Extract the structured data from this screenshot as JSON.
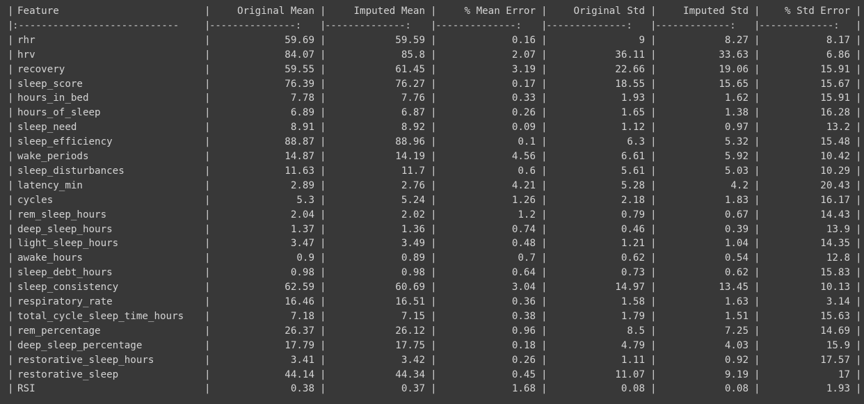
{
  "columns": [
    {
      "label": "Feature",
      "align": "left",
      "sep": ":----------------------------"
    },
    {
      "label": "Original Mean",
      "align": "right",
      "sep": "---------------:"
    },
    {
      "label": "Imputed Mean",
      "align": "right",
      "sep": "--------------:"
    },
    {
      "label": "% Mean Error",
      "align": "right",
      "sep": "--------------:"
    },
    {
      "label": "Original Std",
      "align": "right",
      "sep": "--------------:"
    },
    {
      "label": "Imputed Std",
      "align": "right",
      "sep": "-------------:"
    },
    {
      "label": "% Std Error",
      "align": "right",
      "sep": "-------------:"
    }
  ],
  "rows": [
    [
      "rhr",
      "59.69",
      "59.59",
      "0.16",
      "9",
      "8.27",
      "8.17"
    ],
    [
      "hrv",
      "84.07",
      "85.8",
      "2.07",
      "36.11",
      "33.63",
      "6.86"
    ],
    [
      "recovery",
      "59.55",
      "61.45",
      "3.19",
      "22.66",
      "19.06",
      "15.91"
    ],
    [
      "sleep_score",
      "76.39",
      "76.27",
      "0.17",
      "18.55",
      "15.65",
      "15.67"
    ],
    [
      "hours_in_bed",
      "7.78",
      "7.76",
      "0.33",
      "1.93",
      "1.62",
      "15.91"
    ],
    [
      "hours_of_sleep",
      "6.89",
      "6.87",
      "0.26",
      "1.65",
      "1.38",
      "16.28"
    ],
    [
      "sleep_need",
      "8.91",
      "8.92",
      "0.09",
      "1.12",
      "0.97",
      "13.2"
    ],
    [
      "sleep_efficiency",
      "88.87",
      "88.96",
      "0.1",
      "6.3",
      "5.32",
      "15.48"
    ],
    [
      "wake_periods",
      "14.87",
      "14.19",
      "4.56",
      "6.61",
      "5.92",
      "10.42"
    ],
    [
      "sleep_disturbances",
      "11.63",
      "11.7",
      "0.6",
      "5.61",
      "5.03",
      "10.29"
    ],
    [
      "latency_min",
      "2.89",
      "2.76",
      "4.21",
      "5.28",
      "4.2",
      "20.43"
    ],
    [
      "cycles",
      "5.3",
      "5.24",
      "1.26",
      "2.18",
      "1.83",
      "16.17"
    ],
    [
      "rem_sleep_hours",
      "2.04",
      "2.02",
      "1.2",
      "0.79",
      "0.67",
      "14.43"
    ],
    [
      "deep_sleep_hours",
      "1.37",
      "1.36",
      "0.74",
      "0.46",
      "0.39",
      "13.9"
    ],
    [
      "light_sleep_hours",
      "3.47",
      "3.49",
      "0.48",
      "1.21",
      "1.04",
      "14.35"
    ],
    [
      "awake_hours",
      "0.9",
      "0.89",
      "0.7",
      "0.62",
      "0.54",
      "12.8"
    ],
    [
      "sleep_debt_hours",
      "0.98",
      "0.98",
      "0.64",
      "0.73",
      "0.62",
      "15.83"
    ],
    [
      "sleep_consistency",
      "62.59",
      "60.69",
      "3.04",
      "14.97",
      "13.45",
      "10.13"
    ],
    [
      "respiratory_rate",
      "16.46",
      "16.51",
      "0.36",
      "1.58",
      "1.63",
      "3.14"
    ],
    [
      "total_cycle_sleep_time_hours",
      "7.18",
      "7.15",
      "0.38",
      "1.79",
      "1.51",
      "15.63"
    ],
    [
      "rem_percentage",
      "26.37",
      "26.12",
      "0.96",
      "8.5",
      "7.25",
      "14.69"
    ],
    [
      "deep_sleep_percentage",
      "17.79",
      "17.75",
      "0.18",
      "4.79",
      "4.03",
      "15.9"
    ],
    [
      "restorative_sleep_hours",
      "3.41",
      "3.42",
      "0.26",
      "1.11",
      "0.92",
      "17.57"
    ],
    [
      "restorative_sleep",
      "44.14",
      "44.34",
      "0.45",
      "11.07",
      "9.19",
      "17"
    ],
    [
      "RSI",
      "0.38",
      "0.37",
      "1.68",
      "0.08",
      "0.08",
      "1.93"
    ]
  ],
  "pipe_char": "|",
  "colors": {
    "background": "#383838",
    "text": "#d4d4d4"
  }
}
